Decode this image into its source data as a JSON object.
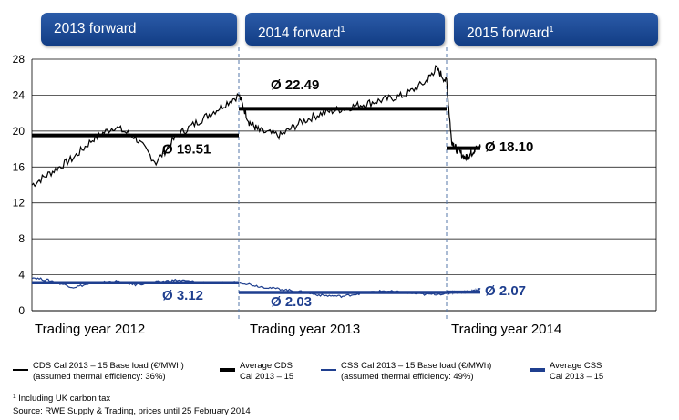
{
  "headers": [
    {
      "label": "2013 forward",
      "sup": ""
    },
    {
      "label": "2014 forward",
      "sup": "1"
    },
    {
      "label": "2015 forward",
      "sup": "1"
    }
  ],
  "chart_data": {
    "type": "line",
    "ylim": [
      0,
      28
    ],
    "yticks": [
      0,
      4,
      8,
      12,
      16,
      20,
      24,
      28
    ],
    "grid": true,
    "periods": [
      "Trading year 2012",
      "Trading year 2013",
      "Trading year 2014"
    ],
    "series": [
      {
        "name": "CDS Cal 2013 – 15 Base load (€/MWh)",
        "note": "(assumed thermal efficiency: 36%)",
        "color": "#000000",
        "x": [
          0,
          0.1,
          0.2,
          0.3,
          0.4,
          0.5,
          0.6,
          0.7,
          0.8,
          0.9,
          1.0,
          1.05,
          1.1,
          1.2,
          1.3,
          1.4,
          1.5,
          1.6,
          1.7,
          1.8,
          1.9,
          1.95,
          2.0,
          2.05,
          2.1,
          2.2,
          2.25,
          2.3,
          2.35
        ],
        "values": [
          14.0,
          15.5,
          17.0,
          19.2,
          20.5,
          19.3,
          16.5,
          19.5,
          21.0,
          22.5,
          24.0,
          21.0,
          20.0,
          19.5,
          21.0,
          22.0,
          22.5,
          23.0,
          23.5,
          24.0,
          25.5,
          27.0,
          25.5,
          19.0,
          18.0,
          17.0,
          17.5,
          18.0,
          18.2
        ]
      },
      {
        "name": "CSS Cal 2013 – 15 Base load (€/MWh)",
        "note": "(assumed thermal efficiency: 49%)",
        "color": "#1f3f8f",
        "x": [
          0,
          0.1,
          0.2,
          0.3,
          0.4,
          0.5,
          0.6,
          0.7,
          0.8,
          0.9,
          1.0,
          1.1,
          1.2,
          1.3,
          1.4,
          1.5,
          1.6,
          1.7,
          1.8,
          1.9,
          2.0,
          2.05,
          2.1,
          2.2,
          2.3,
          2.35
        ],
        "values": [
          3.7,
          3.3,
          2.6,
          3.1,
          3.3,
          2.9,
          3.2,
          3.4,
          3.2,
          3.1,
          3.2,
          2.7,
          2.4,
          2.1,
          1.7,
          1.6,
          2.0,
          2.2,
          2.0,
          1.8,
          1.9,
          2.1,
          2.0,
          2.1,
          2.2,
          2.5
        ]
      }
    ],
    "averages": [
      {
        "name": "Average CDS Cal 2013 – 15",
        "color": "#000000",
        "segments": [
          {
            "x0": 0,
            "x1": 1,
            "value": 19.51,
            "label": "Ø 19.51"
          },
          {
            "x0": 1,
            "x1": 2,
            "value": 22.49,
            "label": "Ø 22.49"
          },
          {
            "x0": 2,
            "x1": 2.35,
            "value": 18.1,
            "label": "Ø 18.10"
          }
        ]
      },
      {
        "name": "Average CSS Cal 2013 – 15",
        "color": "#1f3f8f",
        "segments": [
          {
            "x0": 0,
            "x1": 1,
            "value": 3.12,
            "label": "Ø 3.12"
          },
          {
            "x0": 1,
            "x1": 2,
            "value": 2.03,
            "label": "Ø 2.03"
          },
          {
            "x0": 2,
            "x1": 2.35,
            "value": 2.07,
            "label": "Ø 2.07"
          }
        ]
      }
    ]
  },
  "legend": {
    "cds_line": [
      "CDS Cal 2013 – 15 Base load (€/MWh)",
      "(assumed thermal efficiency: 36%)"
    ],
    "cds_avg": [
      "Average CDS",
      "Cal 2013 – 15"
    ],
    "css_line": [
      "CSS Cal 2013 – 15 Base load (€/MWh)",
      "(assumed thermal efficiency: 49%)"
    ],
    "css_avg": [
      "Average CSS",
      "Cal 2013 – 15"
    ]
  },
  "footnote": {
    "sup": "1",
    "text": " Including UK carbon tax"
  },
  "source": "Source: RWE Supply & Trading, prices until 25 February 2014"
}
